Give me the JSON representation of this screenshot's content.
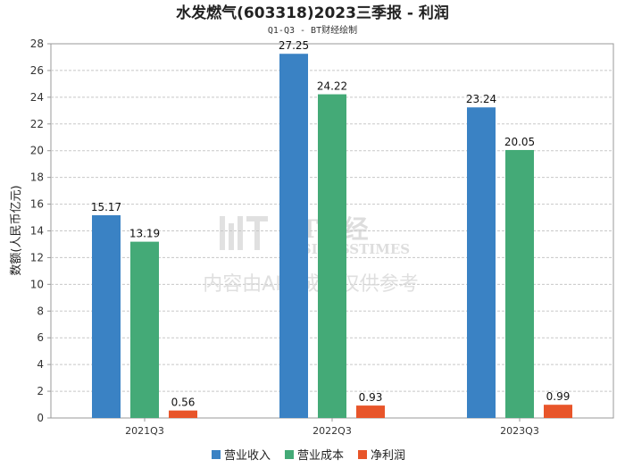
{
  "chart_data": {
    "type": "bar",
    "title": "水发燃气(603318)2023三季报 - 利润",
    "subtitle": "Q1-Q3 - BT财经绘制",
    "ylabel": "数额(人民币亿元)",
    "xlabel": "",
    "ylim": [
      0,
      28
    ],
    "yticks": [
      0,
      2,
      4,
      6,
      8,
      10,
      12,
      14,
      16,
      18,
      20,
      22,
      24,
      26,
      28
    ],
    "grid": true,
    "legend_position": "bottom",
    "categories": [
      "2021Q3",
      "2022Q3",
      "2023Q3"
    ],
    "series": [
      {
        "name": "营业收入",
        "color": "#3a82c4",
        "values": [
          15.17,
          27.25,
          23.24
        ],
        "labels": [
          "15.17",
          "27.25",
          "23.24"
        ]
      },
      {
        "name": "营业成本",
        "color": "#44aa77",
        "values": [
          13.19,
          24.22,
          20.05
        ],
        "labels": [
          "13.19",
          "24.22",
          "20.05"
        ]
      },
      {
        "name": "净利润",
        "color": "#e8552a",
        "values": [
          0.56,
          0.93,
          0.99
        ],
        "labels": [
          "0.56",
          "0.93",
          "0.99"
        ]
      }
    ]
  },
  "watermark": {
    "brand": "BT财经",
    "brand_sub": "BUSINESSTIMES",
    "notice": "内容由AI生成，仅供参考"
  }
}
